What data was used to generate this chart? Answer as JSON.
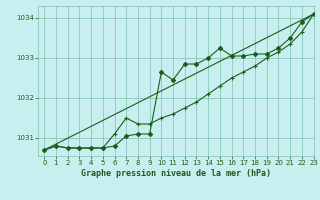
{
  "title": "Graphe pression niveau de la mer (hPa)",
  "background_color": "#c8eef0",
  "grid_color": "#7dbfb0",
  "line_color": "#1a5e1a",
  "xlim": [
    -0.5,
    23
  ],
  "ylim": [
    1030.55,
    1034.3
  ],
  "yticks": [
    1031,
    1032,
    1033,
    1034
  ],
  "xticks": [
    0,
    1,
    2,
    3,
    4,
    5,
    6,
    7,
    8,
    9,
    10,
    11,
    12,
    13,
    14,
    15,
    16,
    17,
    18,
    19,
    20,
    21,
    22,
    23
  ],
  "series1_x": [
    0,
    1,
    2,
    3,
    4,
    5,
    6,
    7,
    8,
    9,
    10,
    11,
    12,
    13,
    14,
    15,
    16,
    17,
    18,
    19,
    20,
    21,
    22,
    23
  ],
  "series1_y": [
    1030.7,
    1030.8,
    1030.75,
    1030.75,
    1030.75,
    1030.75,
    1030.8,
    1031.05,
    1031.1,
    1031.1,
    1032.65,
    1032.45,
    1032.85,
    1032.85,
    1033.0,
    1033.25,
    1033.05,
    1033.05,
    1033.1,
    1033.1,
    1033.25,
    1033.5,
    1033.9,
    1034.1
  ],
  "series2_x": [
    0,
    1,
    2,
    3,
    4,
    5,
    6,
    7,
    8,
    9,
    10,
    11,
    12,
    13,
    14,
    15,
    16,
    17,
    18,
    19,
    20,
    21,
    22,
    23
  ],
  "series2_y": [
    1030.7,
    1030.8,
    1030.75,
    1030.75,
    1030.75,
    1030.75,
    1031.1,
    1031.5,
    1031.35,
    1031.35,
    1031.5,
    1031.6,
    1031.75,
    1031.9,
    1032.1,
    1032.3,
    1032.5,
    1032.65,
    1032.8,
    1033.0,
    1033.15,
    1033.35,
    1033.65,
    1034.1
  ],
  "series3_x": [
    0,
    23
  ],
  "series3_y": [
    1030.7,
    1034.1
  ]
}
